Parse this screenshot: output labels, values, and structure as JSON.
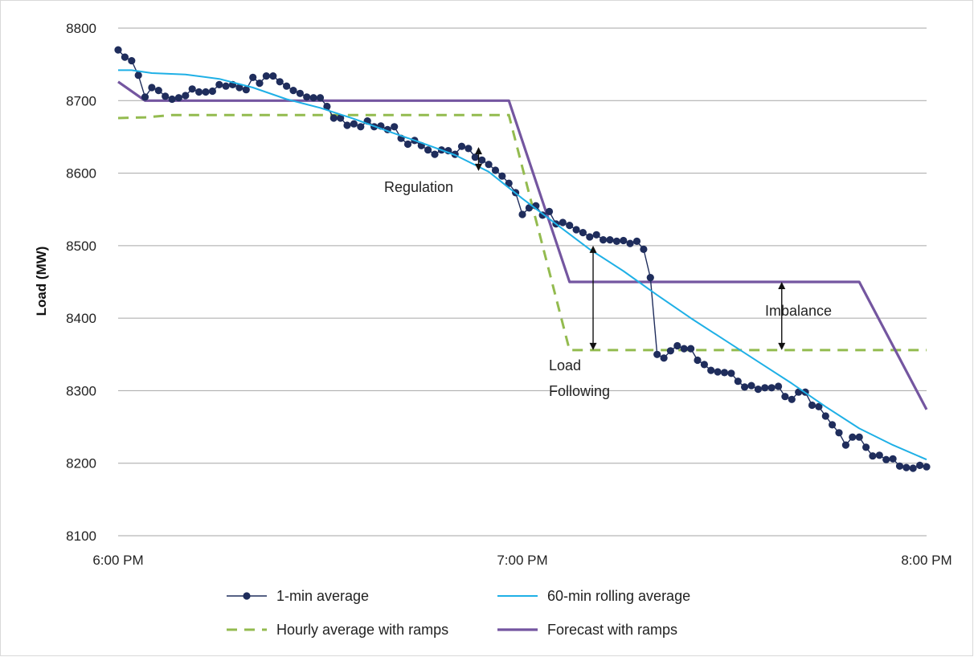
{
  "chart_data": {
    "type": "line",
    "title": "",
    "xlabel": "",
    "ylabel": "Load (MW)",
    "xlim_minutes": [
      0,
      120
    ],
    "ylim": [
      8100,
      8800
    ],
    "y_ticks": [
      8100,
      8200,
      8300,
      8400,
      8500,
      8600,
      8700,
      8800
    ],
    "x_ticks": [
      {
        "minute": 0,
        "label": "6:00 PM"
      },
      {
        "minute": 60,
        "label": "7:00 PM"
      },
      {
        "minute": 120,
        "label": "8:00 PM"
      }
    ],
    "grid": "horizontal",
    "legend_position": "bottom",
    "series": [
      {
        "name": "1-min average",
        "style": "line-markers",
        "color": "#1f2d5c",
        "x_minutes": [
          0,
          1,
          2,
          3,
          4,
          5,
          6,
          7,
          8,
          9,
          10,
          11,
          12,
          13,
          14,
          15,
          16,
          17,
          18,
          19,
          20,
          21,
          22,
          23,
          24,
          25,
          26,
          27,
          28,
          29,
          30,
          31,
          32,
          33,
          34,
          35,
          36,
          37,
          38,
          39,
          40,
          41,
          42,
          43,
          44,
          45,
          46,
          47,
          48,
          49,
          50,
          51,
          52,
          53,
          54,
          55,
          56,
          57,
          58,
          59,
          60,
          61,
          62,
          63,
          64,
          65,
          66,
          67,
          68,
          69,
          70,
          71,
          72,
          73,
          74,
          75,
          76,
          77,
          78,
          79,
          80,
          81,
          82,
          83,
          84,
          85,
          86,
          87,
          88,
          89,
          90,
          91,
          92,
          93,
          94,
          95,
          96,
          97,
          98,
          99,
          100,
          101,
          102,
          103,
          104,
          105,
          106,
          107,
          108,
          109,
          110,
          111,
          112,
          113,
          114,
          115,
          116,
          117,
          118,
          119,
          120
        ],
        "values": [
          8770,
          8760,
          8755,
          8735,
          8705,
          8718,
          8714,
          8706,
          8702,
          8704,
          8707,
          8716,
          8712,
          8712,
          8713,
          8722,
          8720,
          8722,
          8718,
          8715,
          8732,
          8724,
          8734,
          8734,
          8726,
          8720,
          8714,
          8710,
          8705,
          8704,
          8704,
          8692,
          8676,
          8676,
          8666,
          8668,
          8664,
          8672,
          8664,
          8665,
          8660,
          8664,
          8648,
          8640,
          8645,
          8638,
          8632,
          8626,
          8632,
          8631,
          8626,
          8637,
          8634,
          8622,
          8618,
          8612,
          8604,
          8596,
          8586,
          8573,
          8543,
          8552,
          8555,
          8542,
          8547,
          8530,
          8532,
          8528,
          8522,
          8518,
          8512,
          8515,
          8508,
          8508,
          8506,
          8507,
          8503,
          8506,
          8495,
          8456,
          8350,
          8345,
          8355,
          8362,
          8358,
          8358,
          8342,
          8336,
          8328,
          8326,
          8325,
          8324,
          8313,
          8305,
          8307,
          8302,
          8304,
          8304,
          8306,
          8292,
          8288,
          8298,
          8298,
          8280,
          8278,
          8265,
          8253,
          8242,
          8225,
          8236,
          8236,
          8222,
          8210,
          8211,
          8205,
          8206,
          8196,
          8194,
          8193,
          8197,
          8195
        ]
      },
      {
        "name": "60-min rolling average",
        "style": "line",
        "color": "#1fb0e6",
        "x_minutes": [
          0,
          2,
          5,
          10,
          15,
          20,
          25,
          30,
          35,
          40,
          45,
          50,
          55,
          60,
          65,
          70,
          75,
          80,
          85,
          90,
          95,
          100,
          105,
          110,
          115,
          120
        ],
        "values": [
          8742,
          8742,
          8738,
          8736,
          8730,
          8718,
          8702,
          8690,
          8675,
          8658,
          8642,
          8625,
          8602,
          8565,
          8530,
          8495,
          8465,
          8432,
          8400,
          8370,
          8340,
          8310,
          8278,
          8248,
          8225,
          8205
        ]
      },
      {
        "name": "Hourly average with ramps",
        "style": "dashed",
        "color": "#93bb4f",
        "x_minutes": [
          0,
          4,
          8,
          58,
          67,
          120
        ],
        "values": [
          8676,
          8677,
          8680,
          8680,
          8356,
          8356
        ]
      },
      {
        "name": "Forecast with ramps",
        "style": "line",
        "color": "#7456a0",
        "x_minutes": [
          0,
          4,
          8,
          58,
          67,
          110,
          120
        ],
        "values": [
          8726,
          8700,
          8700,
          8700,
          8450,
          8450,
          8274
        ]
      }
    ],
    "annotations": [
      {
        "text": "Regulation",
        "arrow_x_minute": 53.5,
        "arrow_from": 8603,
        "arrow_to": 8636
      },
      {
        "text": "Load Following",
        "arrow_x_minute": 70.5,
        "arrow_from": 8356,
        "arrow_to": 8500
      },
      {
        "text": "Imbalance",
        "arrow_x_minute": 98.5,
        "arrow_from": 8356,
        "arrow_to": 8450
      }
    ]
  }
}
